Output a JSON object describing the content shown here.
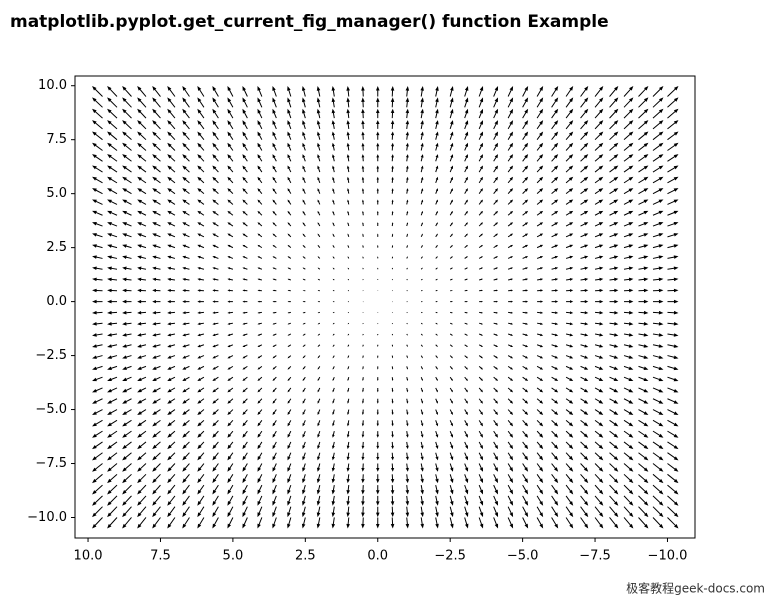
{
  "chart_data": {
    "type": "quiver",
    "title": "matplotlib.pyplot.get_current_fig_manager() function Example",
    "watermark": "极客教程geek-docs.com",
    "color": "#000000",
    "x": [
      -10,
      -9.5,
      -9,
      -8.5,
      -8,
      -7.5,
      -7,
      -6.5,
      -6,
      -5.5,
      -5,
      -4.5,
      -4,
      -3.5,
      -3,
      -2.5,
      -2,
      -1.5,
      -1,
      -0.5,
      0,
      0.5,
      1,
      1.5,
      2,
      2.5,
      3,
      3.5,
      4,
      4.5,
      5,
      5.5,
      6,
      6.5,
      7,
      7.5,
      8,
      8.5,
      9,
      9.5
    ],
    "y": [
      -10,
      -9.5,
      -9,
      -8.5,
      -8,
      -7.5,
      -7,
      -6.5,
      -6,
      -5.5,
      -5,
      -4.5,
      -4,
      -3.5,
      -3,
      -2.5,
      -2,
      -1.5,
      -1,
      -0.5,
      0,
      0.5,
      1,
      1.5,
      2,
      2.5,
      3,
      3.5,
      4,
      4.5,
      5,
      5.5,
      6,
      6.5,
      7,
      7.5,
      8,
      8.5,
      9,
      9.5
    ],
    "u": [
      -10,
      -9.5,
      -9,
      -8.5,
      -8,
      -7.5,
      -7,
      -6.5,
      -6,
      -5.5,
      -5,
      -4.5,
      -4,
      -3.5,
      -3,
      -2.5,
      -2,
      -1.5,
      -1,
      -0.5,
      0,
      0.5,
      1,
      1.5,
      2,
      2.5,
      3,
      3.5,
      4,
      4.5,
      5,
      5.5,
      6,
      6.5,
      7,
      7.5,
      8,
      8.5,
      9,
      9.5
    ],
    "v": [
      -10,
      -9.5,
      -9,
      -8.5,
      -8,
      -7.5,
      -7,
      -6.5,
      -6,
      -5.5,
      -5,
      -4.5,
      -4,
      -3.5,
      -3,
      -2.5,
      -2,
      -1.5,
      -1,
      -0.5,
      0,
      0.5,
      1,
      1.5,
      2,
      2.5,
      3,
      3.5,
      4,
      4.5,
      5,
      5.5,
      6,
      6.5,
      7,
      7.5,
      8,
      8.5,
      9,
      9.5
    ],
    "xlim": [
      10.45,
      -10.95
    ],
    "ylim": [
      -10.95,
      10.45
    ],
    "xticks": [
      {
        "value": 10,
        "label": "10.0"
      },
      {
        "value": 7.5,
        "label": "7.5"
      },
      {
        "value": 5,
        "label": "5.0"
      },
      {
        "value": 2.5,
        "label": "2.5"
      },
      {
        "value": 0,
        "label": "0.0"
      },
      {
        "value": -2.5,
        "label": "−2.5"
      },
      {
        "value": -5,
        "label": "−5.0"
      },
      {
        "value": -7.5,
        "label": "−7.5"
      },
      {
        "value": -10,
        "label": "−10.0"
      }
    ],
    "yticks": [
      {
        "value": 10,
        "label": "10.0"
      },
      {
        "value": 7.5,
        "label": "7.5"
      },
      {
        "value": 5,
        "label": "5.0"
      },
      {
        "value": 2.5,
        "label": "2.5"
      },
      {
        "value": 0,
        "label": "0.0"
      },
      {
        "value": -2.5,
        "label": "−2.5"
      },
      {
        "value": -5,
        "label": "−5.0"
      },
      {
        "value": -7.5,
        "label": "−7.5"
      },
      {
        "value": -10,
        "label": "−10.0"
      }
    ]
  }
}
